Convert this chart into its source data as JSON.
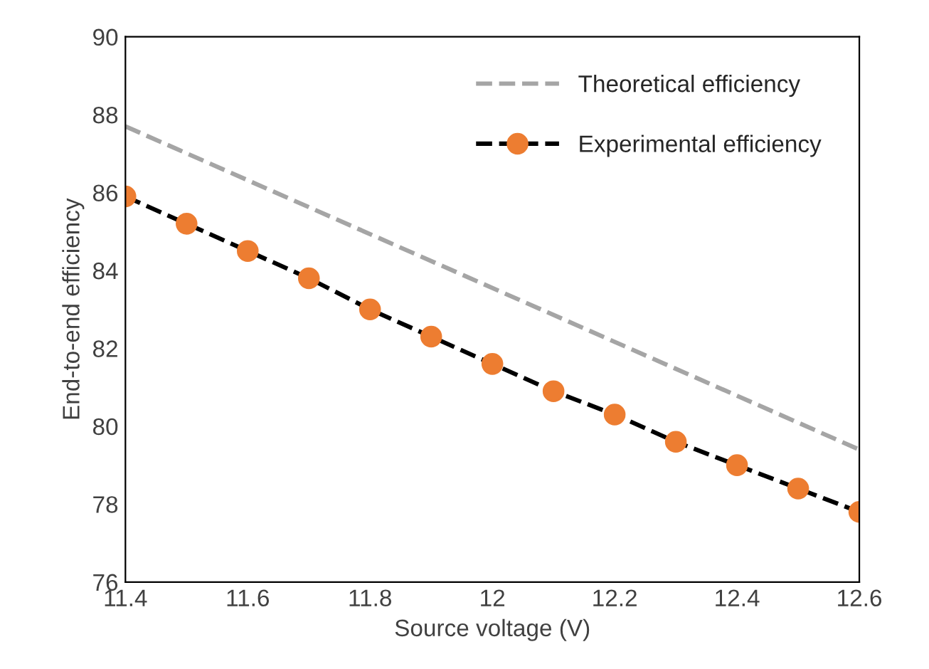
{
  "chart_data": {
    "type": "line",
    "xlabel": "Source voltage (V)",
    "ylabel": "End-to-end efficiency",
    "series": [
      {
        "name": "Theoretical efficiency",
        "color": "#a5a5a5",
        "line_style": "dashed",
        "marker": "none",
        "x": [
          11.4,
          12.6
        ],
        "values": [
          87.7,
          79.4
        ]
      },
      {
        "name": "Experimental efficiency",
        "color": "#ed7d31",
        "line_style": "dashed",
        "marker": "circle",
        "x": [
          11.4,
          11.5,
          11.6,
          11.7,
          11.8,
          11.9,
          12.0,
          12.1,
          12.2,
          12.3,
          12.4,
          12.5,
          12.6
        ],
        "values": [
          85.9,
          85.2,
          84.5,
          83.8,
          83.0,
          82.3,
          81.6,
          80.9,
          80.3,
          79.6,
          79.0,
          78.4,
          77.8
        ]
      }
    ],
    "xlim": [
      11.4,
      12.6
    ],
    "xticks": [
      11.4,
      11.6,
      11.8,
      12,
      12.2,
      12.4,
      12.6
    ],
    "ylim": [
      76,
      90
    ],
    "yticks": [
      76,
      78,
      80,
      82,
      84,
      86,
      88,
      90
    ],
    "grid": false,
    "legend": "top right"
  }
}
